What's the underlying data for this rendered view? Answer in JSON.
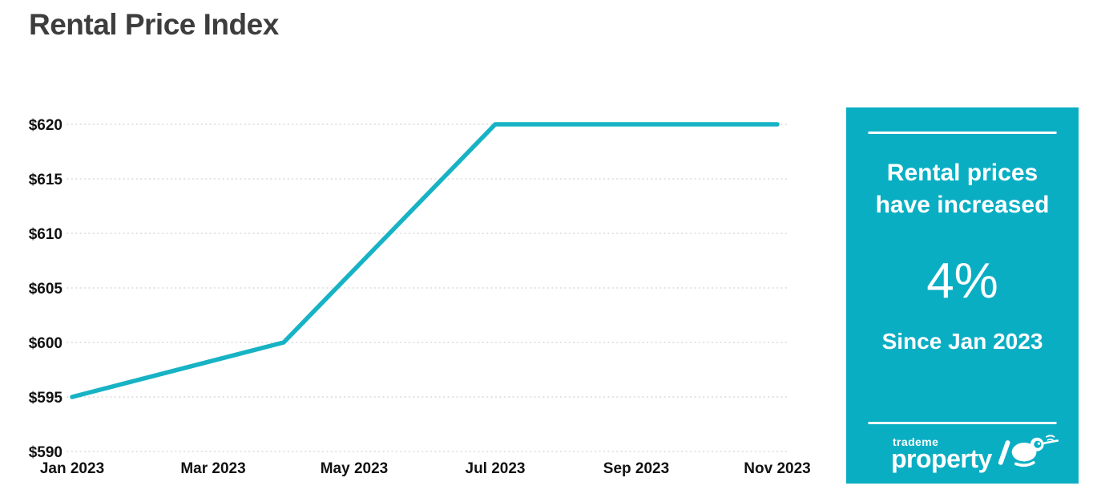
{
  "page": {
    "title": "Rental Price Index"
  },
  "colors": {
    "panel_teal": "#0aaec3",
    "line_teal": "#17b3c5",
    "title_text": "#3d3d3d",
    "axis_text": "#111111",
    "gridline": "#d9d9d9",
    "panel_text": "#ffffff"
  },
  "chart_data": {
    "type": "line",
    "title": "Rental Price Index",
    "x_domain": [
      "Jan 2023",
      "Feb 2023",
      "Mar 2023",
      "Apr 2023",
      "May 2023",
      "Jun 2023",
      "Jul 2023",
      "Aug 2023",
      "Sep 2023",
      "Oct 2023",
      "Nov 2023"
    ],
    "x_tick_labels": [
      "Jan 2023",
      "Mar 2023",
      "May 2023",
      "Jul 2023",
      "Sep 2023",
      "Nov 2023"
    ],
    "x_tick_indices": [
      0,
      2,
      4,
      6,
      8,
      10
    ],
    "y_ticks": [
      590,
      595,
      600,
      605,
      610,
      615,
      620
    ],
    "y_tick_labels": [
      "$590",
      "$595",
      "$600",
      "$605",
      "$610",
      "$615",
      "$620"
    ],
    "ylim": [
      590,
      620
    ],
    "grid": "horizontal-dotted",
    "legend": "none",
    "series": [
      {
        "name": "Rental Price Index",
        "color": "#17b3c5",
        "points": [
          {
            "x": "Jan 2023",
            "y": 595
          },
          {
            "x": "Apr 2023",
            "y": 600
          },
          {
            "x": "Jul 2023",
            "y": 620
          },
          {
            "x": "Nov 2023",
            "y": 620
          }
        ]
      }
    ]
  },
  "panel": {
    "headline": "Rental prices have increased",
    "stat_value": "4%",
    "subheading": "Since Jan 2023",
    "logo": {
      "top": "trademe",
      "bottom": "property"
    }
  }
}
